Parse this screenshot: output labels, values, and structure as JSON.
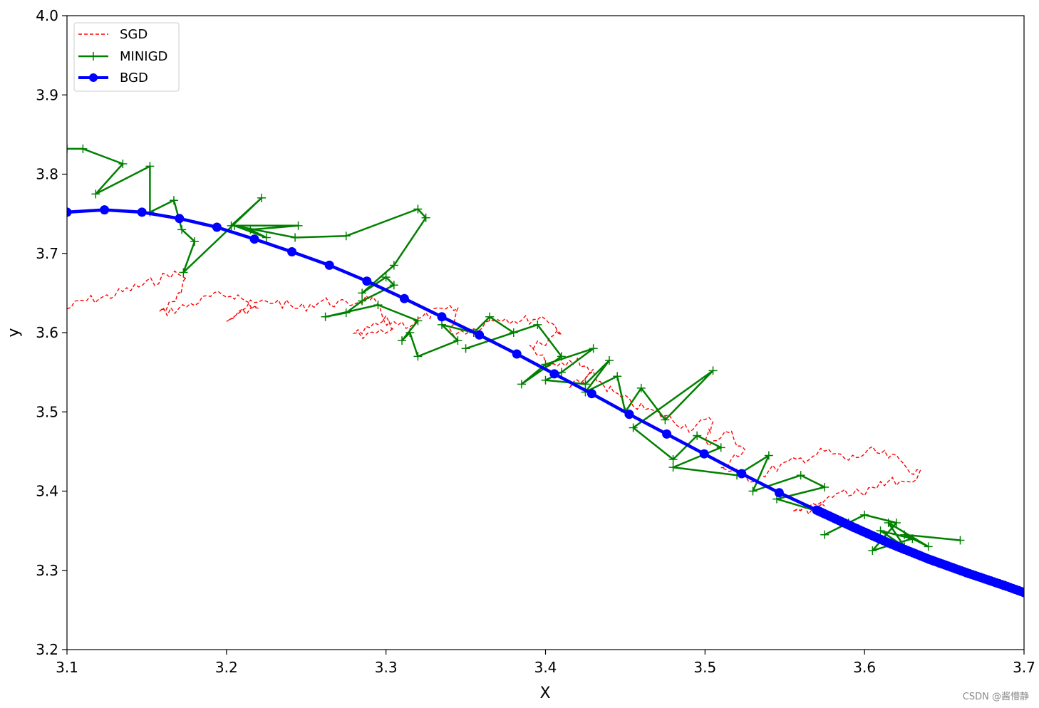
{
  "watermark": "CSDN @酱懵静",
  "chart_data": {
    "type": "line",
    "title": "",
    "xlabel": "X",
    "ylabel": "y",
    "xlim": [
      3.1,
      3.7
    ],
    "ylim": [
      3.2,
      4.0
    ],
    "xticks": [
      "3.1",
      "3.2",
      "3.3",
      "3.4",
      "3.5",
      "3.6",
      "3.7"
    ],
    "yticks": [
      "3.2",
      "3.3",
      "3.4",
      "3.5",
      "3.6",
      "3.7",
      "3.8",
      "3.9",
      "4.0"
    ],
    "grid": false,
    "legend_position": "top-left",
    "series": [
      {
        "name": "SGD",
        "color": "#ff0000",
        "style": "dashed",
        "marker": "none",
        "x": [
          3.1,
          3.11,
          3.125,
          3.14,
          3.155,
          3.165,
          3.175,
          3.168,
          3.158,
          3.17,
          3.19,
          3.205,
          3.22,
          3.2,
          3.215,
          3.23,
          3.245,
          3.26,
          3.275,
          3.29,
          3.305,
          3.28,
          3.3,
          3.315,
          3.33,
          3.345,
          3.34,
          3.355,
          3.37,
          3.385,
          3.4,
          3.41,
          3.39,
          3.405,
          3.42,
          3.43,
          3.415,
          3.43,
          3.445,
          3.46,
          3.475,
          3.49,
          3.505,
          3.5,
          3.515,
          3.525,
          3.51,
          3.53,
          3.545,
          3.56,
          3.575,
          3.59,
          3.605,
          3.62,
          3.635,
          3.615,
          3.6,
          3.585,
          3.57,
          3.555,
          3.575
        ],
        "y": [
          3.63,
          3.64,
          3.645,
          3.655,
          3.665,
          3.675,
          3.67,
          3.64,
          3.625,
          3.63,
          3.645,
          3.648,
          3.63,
          3.62,
          3.635,
          3.64,
          3.63,
          3.64,
          3.635,
          3.645,
          3.6,
          3.595,
          3.615,
          3.61,
          3.625,
          3.63,
          3.6,
          3.605,
          3.62,
          3.615,
          3.62,
          3.6,
          3.58,
          3.555,
          3.565,
          3.55,
          3.53,
          3.545,
          3.52,
          3.505,
          3.495,
          3.48,
          3.49,
          3.46,
          3.475,
          3.45,
          3.43,
          3.415,
          3.43,
          3.44,
          3.45,
          3.44,
          3.45,
          3.44,
          3.42,
          3.41,
          3.4,
          3.395,
          3.38,
          3.37,
          3.385
        ]
      },
      {
        "name": "MINIGD",
        "color": "#008000",
        "style": "solid",
        "marker": "+",
        "x": [
          3.1,
          3.11,
          3.135,
          3.118,
          3.152,
          3.152,
          3.167,
          3.172,
          3.18,
          3.173,
          3.222,
          3.203,
          3.245,
          3.215,
          3.225,
          3.205,
          3.243,
          3.275,
          3.32,
          3.325,
          3.305,
          3.285,
          3.3,
          3.305,
          3.285,
          3.275,
          3.262,
          3.295,
          3.32,
          3.31,
          3.315,
          3.32,
          3.345,
          3.335,
          3.355,
          3.365,
          3.38,
          3.35,
          3.395,
          3.41,
          3.385,
          3.4,
          3.43,
          3.41,
          3.4,
          3.425,
          3.44,
          3.425,
          3.445,
          3.45,
          3.46,
          3.475,
          3.505,
          3.455,
          3.48,
          3.495,
          3.51,
          3.48,
          3.52,
          3.54,
          3.53,
          3.56,
          3.575,
          3.545,
          3.57,
          3.59,
          3.575,
          3.6,
          3.62,
          3.605,
          3.63,
          3.61,
          3.625,
          3.615,
          3.64,
          3.625,
          3.66
        ],
        "y": [
          3.832,
          3.832,
          3.813,
          3.775,
          3.81,
          3.752,
          3.767,
          3.73,
          3.715,
          3.676,
          3.77,
          3.735,
          3.735,
          3.73,
          3.72,
          3.735,
          3.72,
          3.722,
          3.756,
          3.745,
          3.685,
          3.65,
          3.67,
          3.66,
          3.64,
          3.625,
          3.62,
          3.635,
          3.615,
          3.59,
          3.6,
          3.57,
          3.59,
          3.61,
          3.6,
          3.62,
          3.6,
          3.58,
          3.61,
          3.57,
          3.535,
          3.56,
          3.58,
          3.55,
          3.54,
          3.535,
          3.565,
          3.525,
          3.545,
          3.5,
          3.53,
          3.49,
          3.552,
          3.48,
          3.44,
          3.47,
          3.455,
          3.43,
          3.42,
          3.445,
          3.4,
          3.42,
          3.405,
          3.39,
          3.375,
          3.36,
          3.345,
          3.37,
          3.36,
          3.325,
          3.34,
          3.35,
          3.33,
          3.36,
          3.33,
          3.345,
          3.338
        ]
      },
      {
        "name": "BGD",
        "color": "#0000ff",
        "style": "solid-thick",
        "marker": "o",
        "x": [
          3.1,
          3.1235,
          3.147,
          3.1705,
          3.194,
          3.2175,
          3.241,
          3.2645,
          3.288,
          3.3115,
          3.335,
          3.3585,
          3.382,
          3.4055,
          3.429,
          3.4525,
          3.476,
          3.4995,
          3.523,
          3.5465,
          3.57,
          3.5935,
          3.617,
          3.6405,
          3.664,
          3.6875,
          3.7
        ],
        "y": [
          3.752,
          3.755,
          3.752,
          3.744,
          3.733,
          3.718,
          3.702,
          3.685,
          3.665,
          3.643,
          3.62,
          3.597,
          3.573,
          3.548,
          3.523,
          3.497,
          3.472,
          3.447,
          3.422,
          3.398,
          3.376,
          3.354,
          3.333,
          3.314,
          3.297,
          3.281,
          3.272
        ],
        "dense_tail_from_x": 3.57
      }
    ]
  }
}
